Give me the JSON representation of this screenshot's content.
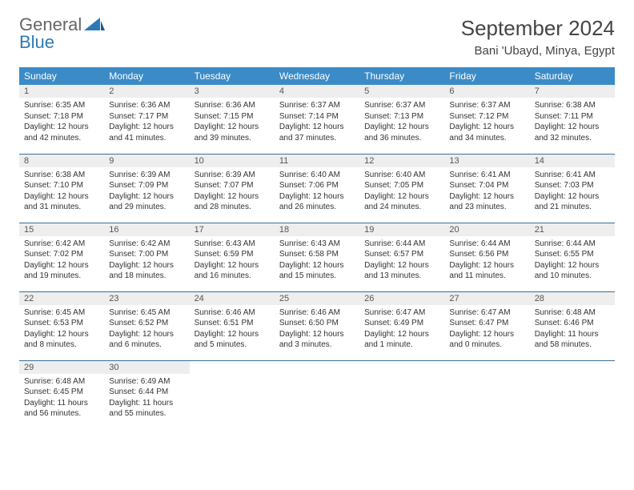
{
  "logo": {
    "line1": "General",
    "line2": "Blue"
  },
  "title": "September 2024",
  "location": "Bani 'Ubayd, Minya, Egypt",
  "colors": {
    "header_bg": "#3b8bc7",
    "header_text": "#ffffff",
    "row_border": "#3b6f97",
    "daynum_bg": "#eeeeee",
    "logo_gray": "#666666",
    "logo_blue": "#2a7ab8"
  },
  "weekdays": [
    "Sunday",
    "Monday",
    "Tuesday",
    "Wednesday",
    "Thursday",
    "Friday",
    "Saturday"
  ],
  "weeks": [
    [
      {
        "n": "1",
        "sr": "6:35 AM",
        "ss": "7:18 PM",
        "dl": "12 hours and 42 minutes."
      },
      {
        "n": "2",
        "sr": "6:36 AM",
        "ss": "7:17 PM",
        "dl": "12 hours and 41 minutes."
      },
      {
        "n": "3",
        "sr": "6:36 AM",
        "ss": "7:15 PM",
        "dl": "12 hours and 39 minutes."
      },
      {
        "n": "4",
        "sr": "6:37 AM",
        "ss": "7:14 PM",
        "dl": "12 hours and 37 minutes."
      },
      {
        "n": "5",
        "sr": "6:37 AM",
        "ss": "7:13 PM",
        "dl": "12 hours and 36 minutes."
      },
      {
        "n": "6",
        "sr": "6:37 AM",
        "ss": "7:12 PM",
        "dl": "12 hours and 34 minutes."
      },
      {
        "n": "7",
        "sr": "6:38 AM",
        "ss": "7:11 PM",
        "dl": "12 hours and 32 minutes."
      }
    ],
    [
      {
        "n": "8",
        "sr": "6:38 AM",
        "ss": "7:10 PM",
        "dl": "12 hours and 31 minutes."
      },
      {
        "n": "9",
        "sr": "6:39 AM",
        "ss": "7:09 PM",
        "dl": "12 hours and 29 minutes."
      },
      {
        "n": "10",
        "sr": "6:39 AM",
        "ss": "7:07 PM",
        "dl": "12 hours and 28 minutes."
      },
      {
        "n": "11",
        "sr": "6:40 AM",
        "ss": "7:06 PM",
        "dl": "12 hours and 26 minutes."
      },
      {
        "n": "12",
        "sr": "6:40 AM",
        "ss": "7:05 PM",
        "dl": "12 hours and 24 minutes."
      },
      {
        "n": "13",
        "sr": "6:41 AM",
        "ss": "7:04 PM",
        "dl": "12 hours and 23 minutes."
      },
      {
        "n": "14",
        "sr": "6:41 AM",
        "ss": "7:03 PM",
        "dl": "12 hours and 21 minutes."
      }
    ],
    [
      {
        "n": "15",
        "sr": "6:42 AM",
        "ss": "7:02 PM",
        "dl": "12 hours and 19 minutes."
      },
      {
        "n": "16",
        "sr": "6:42 AM",
        "ss": "7:00 PM",
        "dl": "12 hours and 18 minutes."
      },
      {
        "n": "17",
        "sr": "6:43 AM",
        "ss": "6:59 PM",
        "dl": "12 hours and 16 minutes."
      },
      {
        "n": "18",
        "sr": "6:43 AM",
        "ss": "6:58 PM",
        "dl": "12 hours and 15 minutes."
      },
      {
        "n": "19",
        "sr": "6:44 AM",
        "ss": "6:57 PM",
        "dl": "12 hours and 13 minutes."
      },
      {
        "n": "20",
        "sr": "6:44 AM",
        "ss": "6:56 PM",
        "dl": "12 hours and 11 minutes."
      },
      {
        "n": "21",
        "sr": "6:44 AM",
        "ss": "6:55 PM",
        "dl": "12 hours and 10 minutes."
      }
    ],
    [
      {
        "n": "22",
        "sr": "6:45 AM",
        "ss": "6:53 PM",
        "dl": "12 hours and 8 minutes."
      },
      {
        "n": "23",
        "sr": "6:45 AM",
        "ss": "6:52 PM",
        "dl": "12 hours and 6 minutes."
      },
      {
        "n": "24",
        "sr": "6:46 AM",
        "ss": "6:51 PM",
        "dl": "12 hours and 5 minutes."
      },
      {
        "n": "25",
        "sr": "6:46 AM",
        "ss": "6:50 PM",
        "dl": "12 hours and 3 minutes."
      },
      {
        "n": "26",
        "sr": "6:47 AM",
        "ss": "6:49 PM",
        "dl": "12 hours and 1 minute."
      },
      {
        "n": "27",
        "sr": "6:47 AM",
        "ss": "6:47 PM",
        "dl": "12 hours and 0 minutes."
      },
      {
        "n": "28",
        "sr": "6:48 AM",
        "ss": "6:46 PM",
        "dl": "11 hours and 58 minutes."
      }
    ],
    [
      {
        "n": "29",
        "sr": "6:48 AM",
        "ss": "6:45 PM",
        "dl": "11 hours and 56 minutes."
      },
      {
        "n": "30",
        "sr": "6:49 AM",
        "ss": "6:44 PM",
        "dl": "11 hours and 55 minutes."
      },
      null,
      null,
      null,
      null,
      null
    ]
  ],
  "labels": {
    "sunrise": "Sunrise: ",
    "sunset": "Sunset: ",
    "daylight": "Daylight: "
  }
}
